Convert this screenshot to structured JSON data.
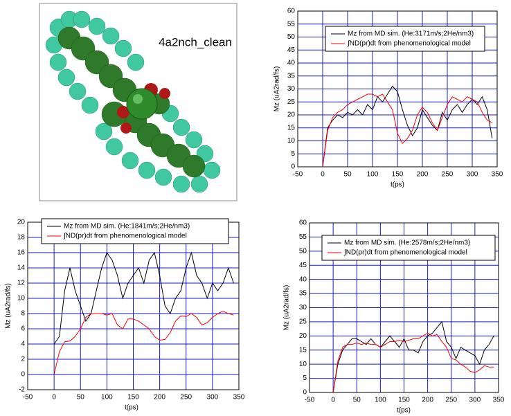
{
  "image": {
    "label": "4a2nch_clean"
  },
  "chart_data": [
    {
      "type": "line",
      "xlabel": "t(ps)",
      "ylabel": "Mz (uA2rad/fs)",
      "x": [
        0,
        10,
        20,
        30,
        40,
        50,
        60,
        70,
        80,
        90,
        100,
        110,
        120,
        130,
        140,
        150,
        160,
        170,
        180,
        190,
        200,
        210,
        220,
        230,
        240,
        250,
        260,
        270,
        280,
        290,
        300,
        310,
        320,
        330,
        340
      ],
      "series": [
        {
          "name": "Mz from MD sim. (He:3171m/s;2He/nm3)",
          "color": "#000000",
          "values": [
            0,
            15,
            18,
            20,
            19,
            21,
            20,
            22,
            20,
            24,
            22,
            27,
            25,
            28,
            31,
            29,
            22,
            16,
            12,
            15,
            22,
            19,
            16,
            14,
            21,
            18,
            22,
            24,
            21,
            24,
            26,
            24,
            27,
            22,
            11
          ]
        },
        {
          "name": "∫ND(pr)dt from phenomenological model",
          "color": "#ff0000",
          "values": [
            0,
            14,
            19,
            21,
            22,
            24,
            25,
            26,
            27,
            28,
            28,
            27,
            28,
            25,
            22,
            13,
            9,
            11,
            14,
            20,
            23,
            21,
            17,
            14,
            19,
            24,
            27,
            26,
            25,
            27,
            26,
            25,
            21,
            18,
            17
          ]
        }
      ],
      "xlim": [
        -50,
        350
      ],
      "ylim": [
        0,
        60
      ],
      "xticks": [
        -50,
        0,
        50,
        100,
        150,
        200,
        250,
        300,
        350
      ],
      "yticks": [
        0,
        5,
        10,
        15,
        20,
        25,
        30,
        35,
        40,
        45,
        50,
        55,
        60
      ],
      "grid": true
    },
    {
      "type": "line",
      "xlabel": "t(ps)",
      "ylabel": "Mz (uA2rad/fs)",
      "x": [
        0,
        10,
        20,
        30,
        40,
        50,
        60,
        70,
        80,
        90,
        100,
        110,
        120,
        130,
        140,
        150,
        160,
        170,
        180,
        190,
        200,
        210,
        220,
        230,
        240,
        250,
        260,
        270,
        280,
        290,
        300,
        310,
        320,
        330,
        340
      ],
      "series": [
        {
          "name": "Mz from MD sim. (He:1841m/s;2He/nm3)",
          "color": "#000000",
          "values": [
            4,
            5,
            11,
            14,
            11,
            9,
            7,
            8,
            11,
            14,
            16,
            15,
            13,
            10,
            12,
            13,
            14,
            12,
            15,
            16,
            13,
            9,
            8,
            10,
            11,
            14,
            16,
            13,
            12,
            10,
            12,
            11,
            12,
            14,
            12
          ]
        },
        {
          "name": "∫ND(pr)dt from phenomenological model",
          "color": "#ff0000",
          "values": [
            0,
            3,
            4.3,
            4.4,
            5,
            6,
            7.5,
            8,
            8,
            8,
            7.8,
            8,
            6.5,
            6,
            7.3,
            7.3,
            7,
            6.5,
            6,
            5,
            4.5,
            4.6,
            5.5,
            7,
            7.7,
            7.6,
            8,
            7.5,
            6.5,
            6.8,
            7.5,
            8,
            8.3,
            8,
            7.8
          ]
        }
      ],
      "xlim": [
        -50,
        350
      ],
      "ylim": [
        -2,
        20
      ],
      "xticks": [
        -50,
        0,
        50,
        100,
        150,
        200,
        250,
        300,
        350
      ],
      "yticks": [
        -2,
        0,
        2,
        4,
        6,
        8,
        10,
        12,
        14,
        16,
        18,
        20
      ],
      "grid": true
    },
    {
      "type": "line",
      "xlabel": "t(ps)",
      "ylabel": "Mz (uA2rad/fs)",
      "x": [
        0,
        10,
        20,
        30,
        40,
        50,
        60,
        70,
        80,
        90,
        100,
        110,
        120,
        130,
        140,
        150,
        160,
        170,
        180,
        190,
        200,
        210,
        220,
        230,
        240,
        250,
        260,
        270,
        280,
        290,
        300,
        310,
        320,
        330,
        340
      ],
      "series": [
        {
          "name": "Mz from MD sim. (He:2578m/s;2He/nm3)",
          "color": "#000000",
          "values": [
            0,
            10,
            15,
            17,
            19,
            19,
            18,
            17,
            19,
            17,
            16,
            18,
            20,
            18,
            16,
            19,
            15,
            15,
            14,
            18,
            20,
            21,
            23,
            25,
            18,
            16,
            12,
            16,
            15,
            14,
            13,
            10,
            15,
            17,
            20
          ]
        },
        {
          "name": "∫ND(pr)dt from phenomenological model",
          "color": "#ff0000",
          "values": [
            0,
            11,
            16,
            17,
            17,
            17.5,
            17,
            17.5,
            17,
            17,
            16,
            17,
            18,
            18,
            18.5,
            18,
            18.5,
            19,
            19,
            20,
            21,
            20,
            20.5,
            18,
            16,
            12,
            11.5,
            10,
            9,
            7.5,
            7,
            8,
            9.5,
            9,
            9
          ]
        }
      ],
      "xlim": [
        -50,
        350
      ],
      "ylim": [
        0,
        60
      ],
      "xticks": [
        -50,
        0,
        50,
        100,
        150,
        200,
        250,
        300,
        350
      ],
      "yticks": [
        0,
        5,
        10,
        15,
        20,
        25,
        30,
        35,
        40,
        45,
        50,
        55,
        60
      ],
      "grid": true
    }
  ]
}
